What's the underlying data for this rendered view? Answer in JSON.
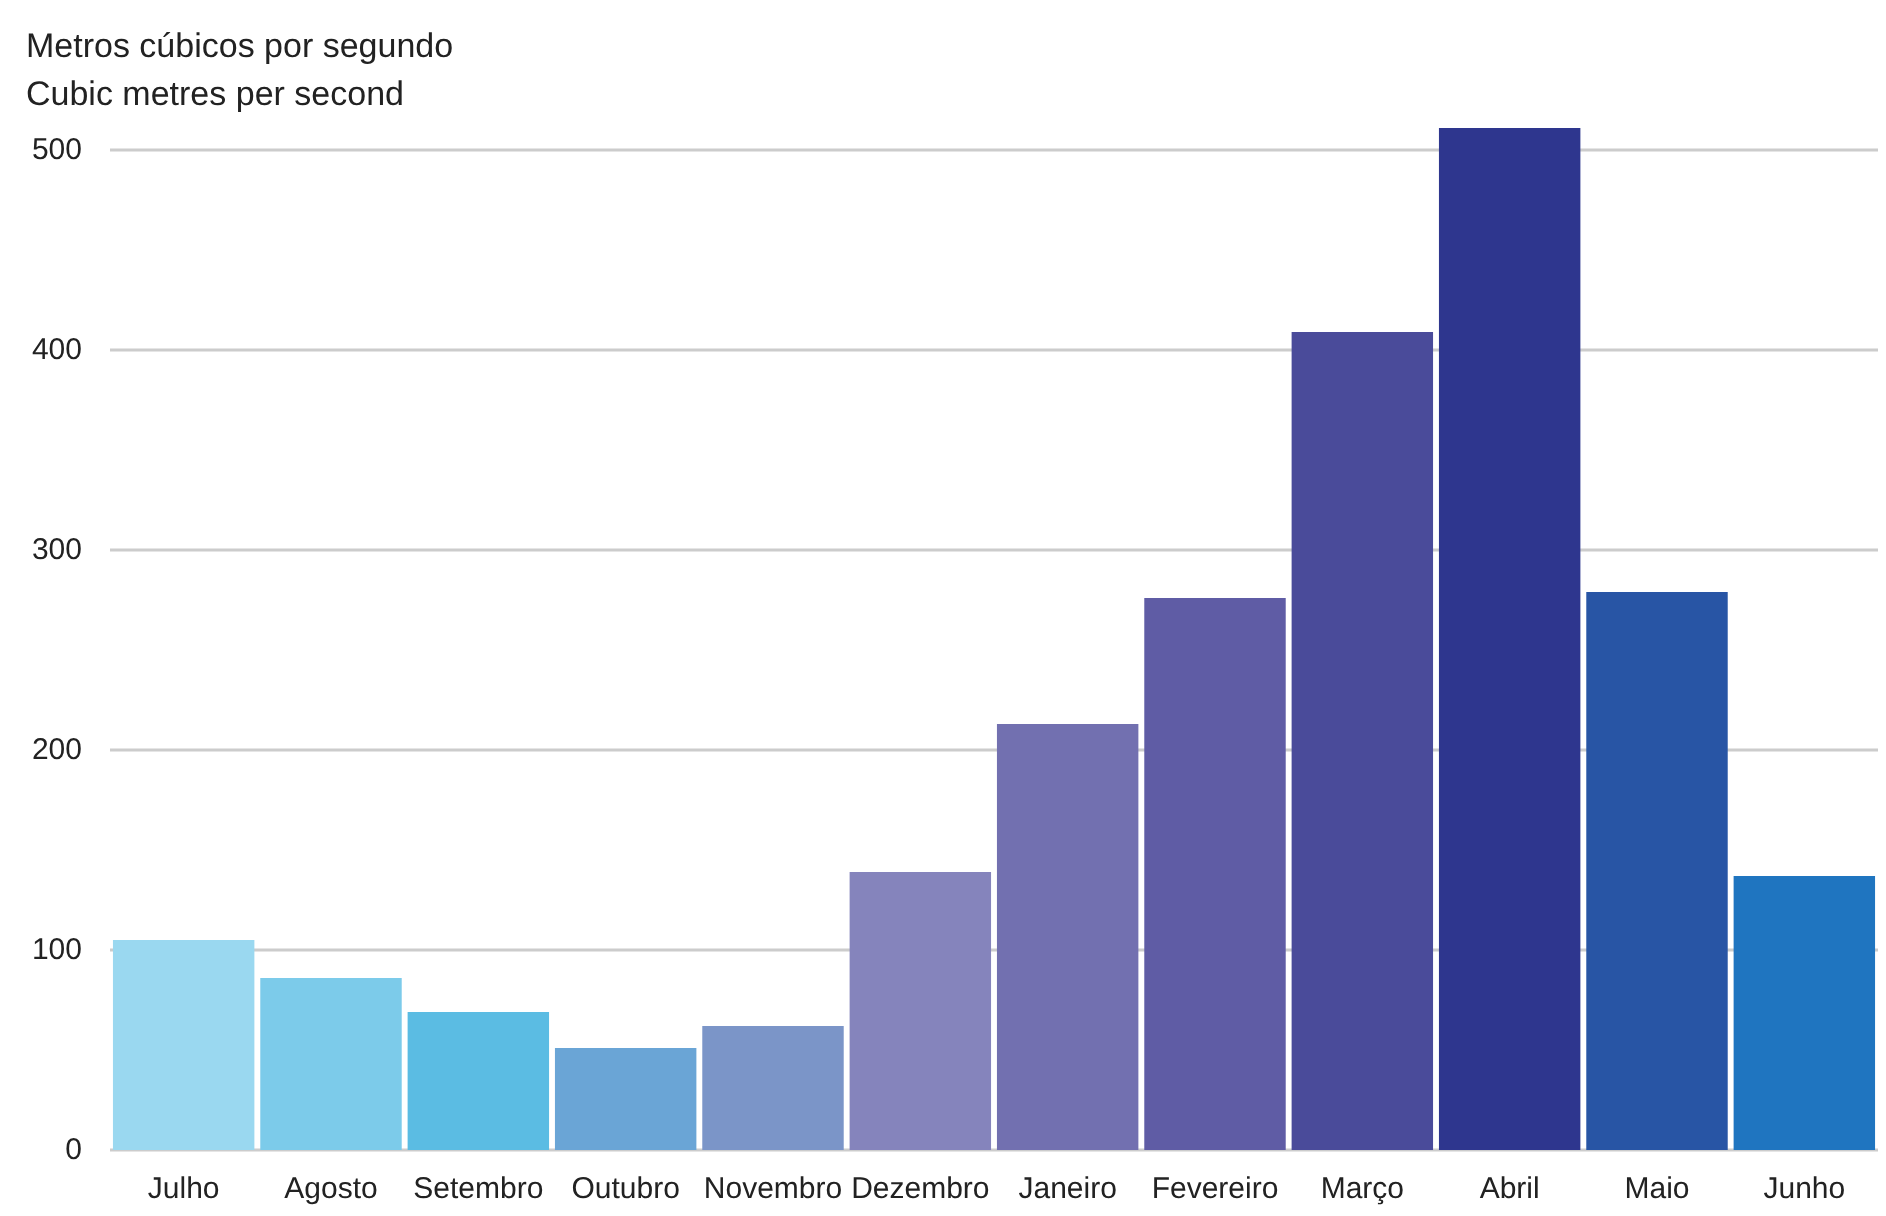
{
  "chart_data": {
    "type": "bar",
    "ylabel": "Metros cúbicos por segundo\nCubic metres per second",
    "categories": [
      "Julho",
      "Agosto",
      "Setembro",
      "Outubro",
      "Novembro",
      "Dezembro",
      "Janeiro",
      "Fevereiro",
      "Março",
      "Abril",
      "Maio",
      "Junho"
    ],
    "values": [
      105,
      86,
      69,
      51,
      62,
      139,
      213,
      276,
      409,
      511,
      279,
      137
    ],
    "colors": [
      "#9ad8f0",
      "#7ccbea",
      "#5bbce3",
      "#6aa5d6",
      "#7b95c8",
      "#8584bc",
      "#7270b0",
      "#5f5ca5",
      "#4a4b9a",
      "#2e368e",
      "#2855a5",
      "#1f75c0"
    ],
    "ylim": [
      0,
      511
    ],
    "yticks": [
      0,
      100,
      200,
      300,
      400,
      500
    ],
    "grid": "y"
  }
}
